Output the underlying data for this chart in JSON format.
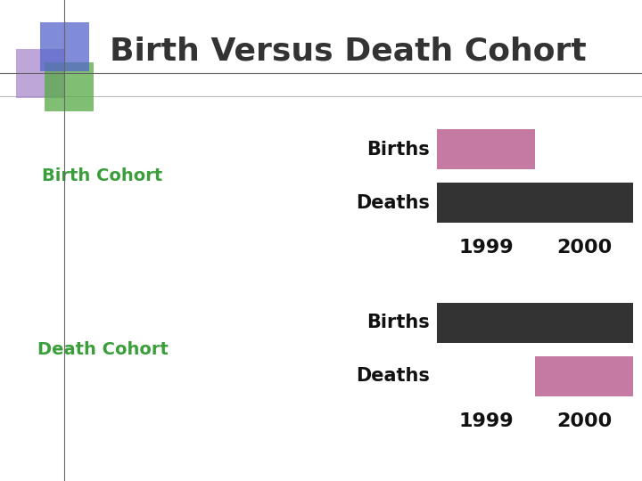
{
  "title": "Birth Versus Death Cohort",
  "title_color": "#333333",
  "title_fontsize": 26,
  "background_color": "#ffffff",
  "pink_color": "#c47aa3",
  "dark_color": "#333333",
  "green_color": "#3a9e3a",
  "label_color": "#111111",
  "section1_label": "Birth Cohort",
  "section2_label": "Death Cohort",
  "year_labels": [
    "1999",
    "2000"
  ],
  "deco_blue": "#5566cc",
  "deco_purple": "#aa88cc",
  "deco_green": "#55aa44",
  "deco_alpha": 0.75,
  "bar_label_fontsize": 15,
  "section_label_fontsize": 14,
  "year_fontsize": 16
}
